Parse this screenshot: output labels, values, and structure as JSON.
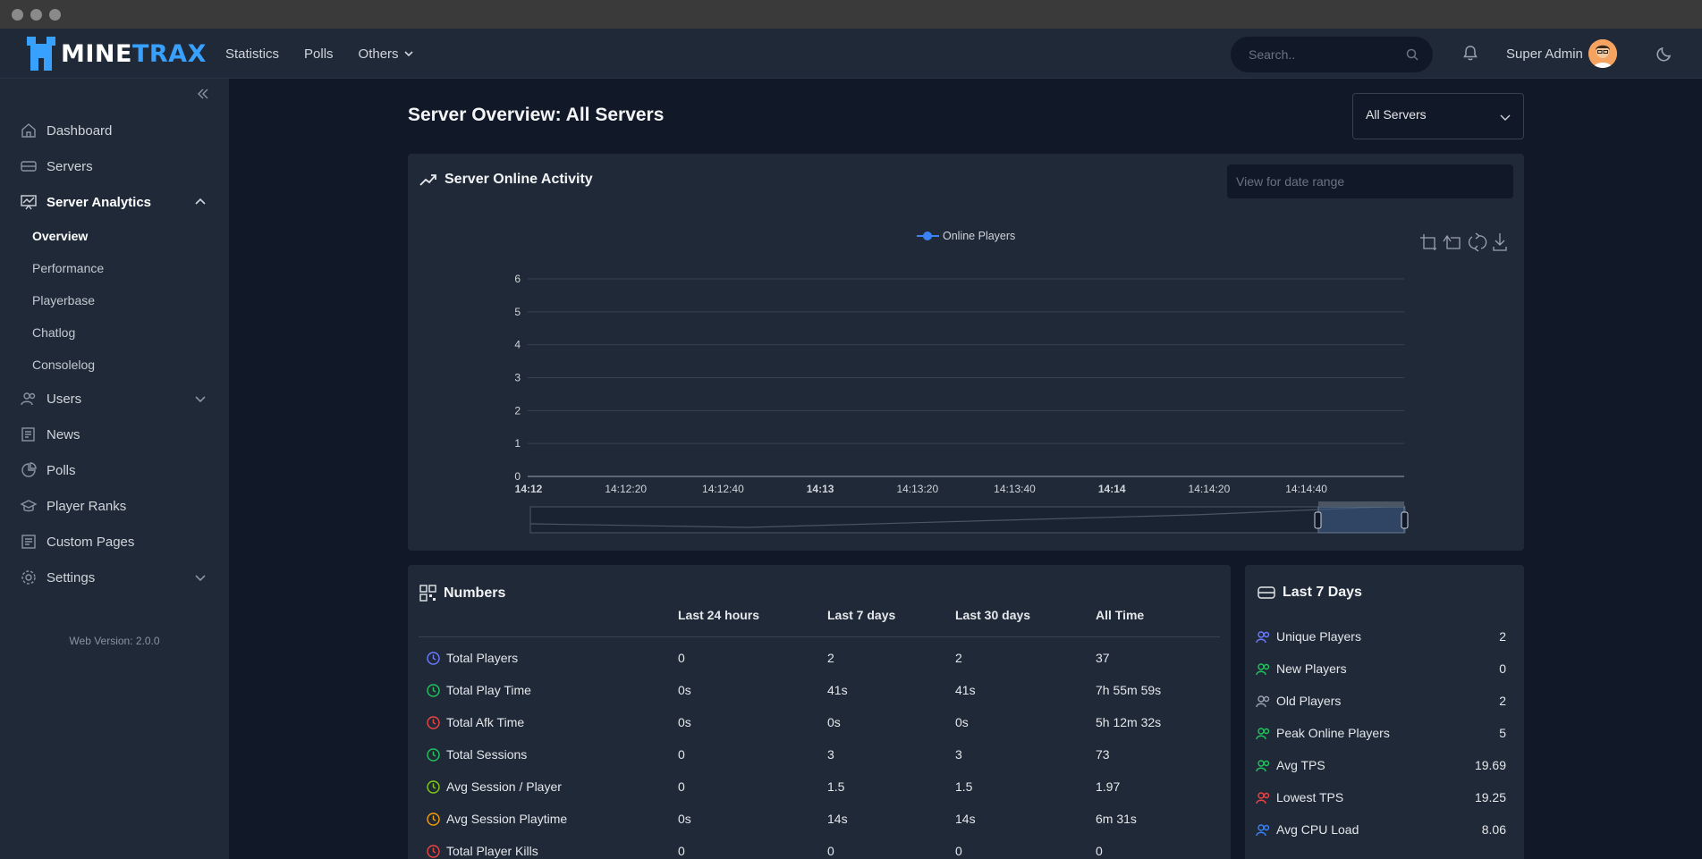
{
  "brand": {
    "part1": "MINE",
    "part2": "TRAX"
  },
  "nav": {
    "statistics": "Statistics",
    "polls": "Polls",
    "others": "Others"
  },
  "search": {
    "placeholder": "Search.."
  },
  "user": {
    "name": "Super Admin"
  },
  "sidebar": {
    "items": [
      {
        "label": "Dashboard",
        "icon": "home-icon"
      },
      {
        "label": "Servers",
        "icon": "server-icon"
      },
      {
        "label": "Server Analytics",
        "icon": "analytics-icon"
      },
      {
        "label": "Users",
        "icon": "users-icon"
      },
      {
        "label": "News",
        "icon": "news-icon"
      },
      {
        "label": "Polls",
        "icon": "polls-icon"
      },
      {
        "label": "Player Ranks",
        "icon": "ranks-icon"
      },
      {
        "label": "Custom Pages",
        "icon": "pages-icon"
      },
      {
        "label": "Settings",
        "icon": "gear-icon"
      }
    ],
    "analytics_sub": [
      "Overview",
      "Performance",
      "Playerbase",
      "Chatlog",
      "Consolelog"
    ],
    "version": "Web Version: 2.0.0"
  },
  "page": {
    "title": "Server Overview: All Servers",
    "server_select": "All Servers"
  },
  "activity": {
    "title": "Server Online Activity",
    "date_placeholder": "View for date range"
  },
  "chart_data": {
    "type": "line",
    "title": "",
    "legend": [
      "Online Players"
    ],
    "legend_position": "top-center",
    "xlabel": "",
    "ylabel": "",
    "ylim": [
      0,
      6
    ],
    "yticks": [
      "0",
      "1",
      "2",
      "3",
      "4",
      "5",
      "6"
    ],
    "xticks": [
      "14:12",
      "14:12:20",
      "14:12:40",
      "14:13",
      "14:13:20",
      "14:13:40",
      "14:14",
      "14:14:20",
      "14:14:40"
    ],
    "bold_xticks": [
      "14:12",
      "14:13",
      "14:14"
    ],
    "grid": true,
    "series": [
      {
        "name": "Online Players",
        "values": [],
        "color": "#3b82f6"
      }
    ]
  },
  "numbers": {
    "title": "Numbers",
    "columns": [
      "Last 24 hours",
      "Last 7 days",
      "Last 30 days",
      "All Time"
    ],
    "rows": [
      {
        "label": "Total Players",
        "icon": "players-icon",
        "color": "#6b7cff",
        "values": [
          "0",
          "2",
          "2",
          "37"
        ]
      },
      {
        "label": "Total Play Time",
        "icon": "clock-icon",
        "color": "#22c55e",
        "values": [
          "0s",
          "41s",
          "41s",
          "7h 55m 59s"
        ]
      },
      {
        "label": "Total Afk Time",
        "icon": "clock-icon",
        "color": "#ef4444",
        "values": [
          "0s",
          "0s",
          "0s",
          "5h 12m 32s"
        ]
      },
      {
        "label": "Total Sessions",
        "icon": "users-icon",
        "color": "#22c55e",
        "values": [
          "0",
          "3",
          "3",
          "73"
        ]
      },
      {
        "label": "Avg Session / Player",
        "icon": "users-icon",
        "color": "#84cc16",
        "values": [
          "0",
          "1.5",
          "1.5",
          "1.97"
        ]
      },
      {
        "label": "Avg Session Playtime",
        "icon": "clock-icon",
        "color": "#f59e0b",
        "values": [
          "0s",
          "14s",
          "14s",
          "6m 31s"
        ]
      },
      {
        "label": "Total Player Kills",
        "icon": "fire-icon",
        "color": "#ef4444",
        "values": [
          "0",
          "0",
          "0",
          "0"
        ]
      }
    ]
  },
  "last7": {
    "title": "Last 7 Days",
    "rows": [
      {
        "label": "Unique Players",
        "value": "2",
        "color": "#6b7cff"
      },
      {
        "label": "New Players",
        "value": "0",
        "color": "#22c55e"
      },
      {
        "label": "Old Players",
        "value": "2",
        "color": "#9ca3af"
      },
      {
        "label": "Peak Online Players",
        "value": "5",
        "color": "#22c55e"
      },
      {
        "label": "Avg TPS",
        "value": "19.69",
        "color": "#22c55e"
      },
      {
        "label": "Lowest TPS",
        "value": "19.25",
        "color": "#ef4444"
      },
      {
        "label": "Avg CPU Load",
        "value": "8.06",
        "color": "#3b82f6"
      }
    ]
  }
}
